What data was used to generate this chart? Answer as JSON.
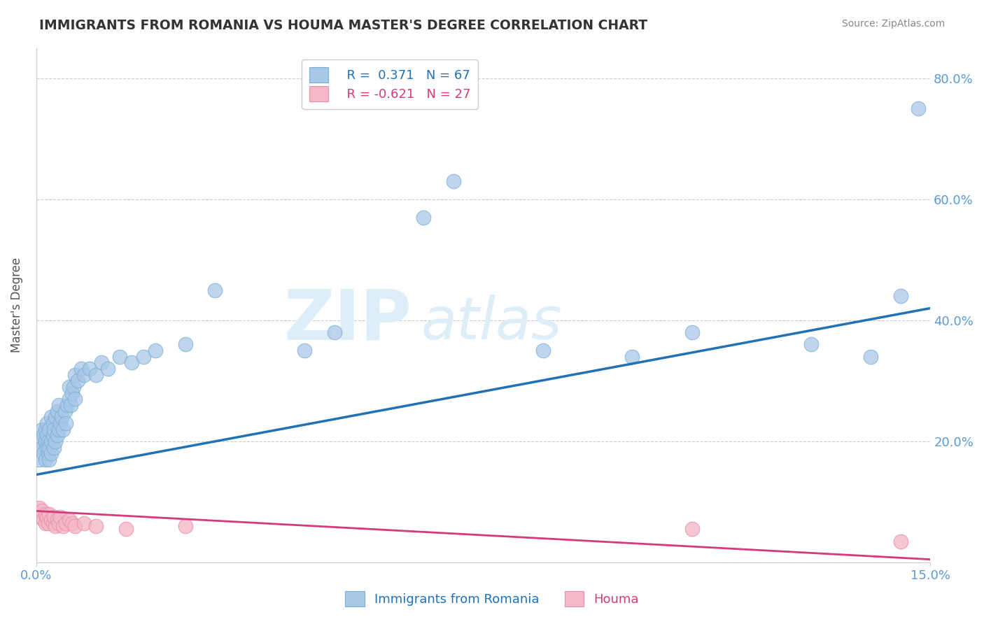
{
  "title": "IMMIGRANTS FROM ROMANIA VS HOUMA MASTER'S DEGREE CORRELATION CHART",
  "source": "Source: ZipAtlas.com",
  "xlabel_blue": "Immigrants from Romania",
  "xlabel_pink": "Houma",
  "ylabel": "Master's Degree",
  "xlim": [
    0.0,
    15.0
  ],
  "ylim": [
    0.0,
    85.0
  ],
  "y_ticks_right": [
    0.0,
    20.0,
    40.0,
    60.0,
    80.0
  ],
  "y_tick_labels_right": [
    "",
    "20.0%",
    "40.0%",
    "60.0%",
    "80.0%"
  ],
  "legend_blue_r": "R =  0.371",
  "legend_blue_n": "N = 67",
  "legend_pink_r": "R = -0.621",
  "legend_pink_n": "N = 27",
  "blue_color": "#a8c8e8",
  "blue_edge_color": "#7aaed0",
  "blue_line_color": "#2171b5",
  "pink_color": "#f4b8c8",
  "pink_edge_color": "#e890aa",
  "pink_line_color": "#d63a7a",
  "watermark_zip": "ZIP",
  "watermark_atlas": "atlas",
  "watermark_color": "#ddeef8",
  "bg_color": "#ffffff",
  "grid_color": "#cccccc",
  "title_color": "#333333",
  "axis_color": "#5b9bd5",
  "blue_scatter_x": [
    0.05,
    0.08,
    0.1,
    0.1,
    0.12,
    0.12,
    0.15,
    0.15,
    0.15,
    0.18,
    0.18,
    0.18,
    0.2,
    0.2,
    0.22,
    0.22,
    0.22,
    0.25,
    0.25,
    0.25,
    0.28,
    0.28,
    0.3,
    0.3,
    0.32,
    0.32,
    0.35,
    0.35,
    0.38,
    0.38,
    0.4,
    0.42,
    0.45,
    0.48,
    0.5,
    0.52,
    0.55,
    0.55,
    0.58,
    0.6,
    0.62,
    0.65,
    0.65,
    0.7,
    0.75,
    0.8,
    0.9,
    1.0,
    1.1,
    1.2,
    1.4,
    1.6,
    1.8,
    2.0,
    2.5,
    3.0,
    4.5,
    5.0,
    6.5,
    7.0,
    8.5,
    10.0,
    11.0,
    13.0,
    14.0,
    14.5,
    14.8
  ],
  "blue_scatter_y": [
    17.0,
    20.0,
    19.0,
    22.0,
    18.0,
    21.0,
    17.0,
    20.0,
    22.0,
    19.0,
    21.0,
    23.0,
    18.0,
    20.0,
    17.0,
    19.0,
    22.0,
    18.0,
    20.0,
    24.0,
    21.0,
    23.0,
    19.0,
    22.0,
    20.0,
    24.0,
    21.0,
    25.0,
    22.0,
    26.0,
    23.0,
    24.0,
    22.0,
    25.0,
    23.0,
    26.0,
    27.0,
    29.0,
    26.0,
    28.0,
    29.0,
    27.0,
    31.0,
    30.0,
    32.0,
    31.0,
    32.0,
    31.0,
    33.0,
    32.0,
    34.0,
    33.0,
    34.0,
    35.0,
    36.0,
    45.0,
    35.0,
    38.0,
    57.0,
    63.0,
    35.0,
    34.0,
    38.0,
    36.0,
    34.0,
    44.0,
    75.0
  ],
  "pink_scatter_x": [
    0.05,
    0.08,
    0.1,
    0.12,
    0.15,
    0.15,
    0.18,
    0.2,
    0.22,
    0.25,
    0.28,
    0.3,
    0.32,
    0.35,
    0.38,
    0.4,
    0.45,
    0.5,
    0.55,
    0.6,
    0.65,
    0.8,
    1.0,
    1.5,
    2.5,
    11.0,
    14.5
  ],
  "pink_scatter_y": [
    9.0,
    7.5,
    8.5,
    7.0,
    8.0,
    6.5,
    7.5,
    6.5,
    8.0,
    7.0,
    6.5,
    7.5,
    6.0,
    7.0,
    6.5,
    7.5,
    6.0,
    6.5,
    7.0,
    6.5,
    6.0,
    6.5,
    6.0,
    5.5,
    6.0,
    5.5,
    3.5
  ],
  "blue_line_x": [
    0.0,
    15.0
  ],
  "blue_line_y": [
    14.5,
    42.0
  ],
  "pink_line_x": [
    0.0,
    15.0
  ],
  "pink_line_y": [
    8.5,
    0.5
  ]
}
